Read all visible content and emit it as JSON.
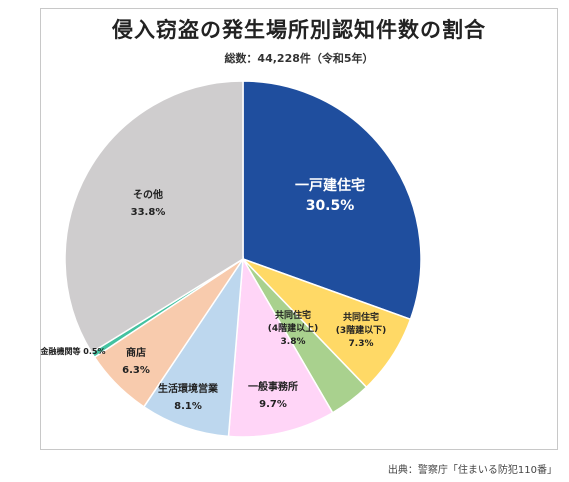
{
  "title": "侵入窃盗の発生場所別認知件数の割合",
  "subtitle": "総数：44,228件（令和5年）",
  "source": "出典：警察庁「住まいる防犯110番」",
  "chart_data": {
    "type": "pie",
    "title": "侵入窃盗の発生場所別認知件数の割合",
    "subtitle": "総数：44,228件（令和5年）",
    "start_angle_deg": 0,
    "direction": "clockwise",
    "slices": [
      {
        "label": "一戸建住宅",
        "value": 30.5,
        "value_text": "30.5%",
        "color": "#1f4e9e"
      },
      {
        "label": "共同住宅\n(3階建以下)",
        "value": 7.3,
        "value_text": "7.3%",
        "color": "#ffd966"
      },
      {
        "label": "共同住宅\n(4階建以上)",
        "value": 3.8,
        "value_text": "3.8%",
        "color": "#a9d18e"
      },
      {
        "label": "一般事務所",
        "value": 9.7,
        "value_text": "9.7%",
        "color": "#ffd5f7"
      },
      {
        "label": "生活環境営業",
        "value": 8.1,
        "value_text": "8.1%",
        "color": "#bdd7ee"
      },
      {
        "label": "商店",
        "value": 6.3,
        "value_text": "6.3%",
        "color": "#f8cbad"
      },
      {
        "label": "金融機関等",
        "value": 0.5,
        "value_text": "0.5%",
        "color": "#44c2a0"
      },
      {
        "label": "その他",
        "value": 33.8,
        "value_text": "33.8%",
        "color": "#cfcdce"
      }
    ]
  }
}
